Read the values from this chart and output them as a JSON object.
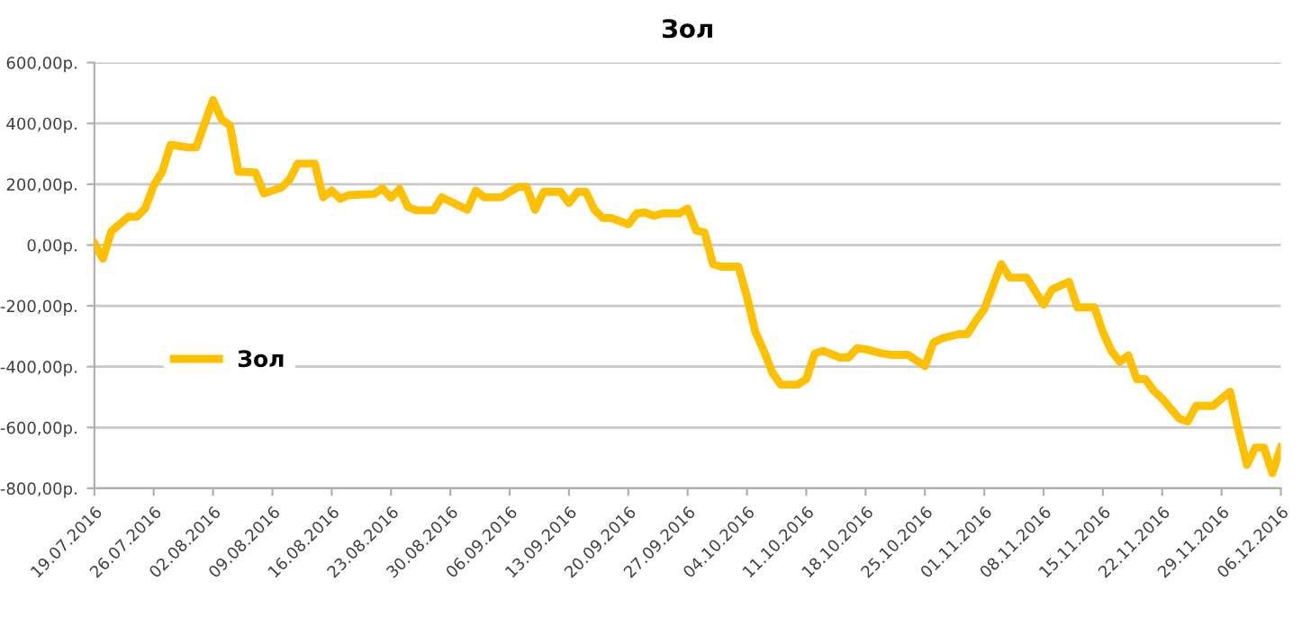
{
  "chart_data": {
    "type": "line",
    "title": "Зол",
    "x": [
      "2016-07-19",
      "2016-07-20",
      "2016-07-21",
      "2016-07-23",
      "2016-07-24",
      "2016-07-25",
      "2016-07-26",
      "2016-07-27",
      "2016-07-28",
      "2016-07-30",
      "2016-07-31",
      "2016-08-02",
      "2016-08-03",
      "2016-08-04",
      "2016-08-05",
      "2016-08-07",
      "2016-08-08",
      "2016-08-10",
      "2016-08-11",
      "2016-08-12",
      "2016-08-14",
      "2016-08-15",
      "2016-08-16",
      "2016-08-17",
      "2016-08-18",
      "2016-08-21",
      "2016-08-22",
      "2016-08-23",
      "2016-08-24",
      "2016-08-25",
      "2016-08-26",
      "2016-08-28",
      "2016-08-29",
      "2016-08-30",
      "2016-09-01",
      "2016-09-02",
      "2016-09-03",
      "2016-09-05",
      "2016-09-06",
      "2016-09-07",
      "2016-09-08",
      "2016-09-09",
      "2016-09-10",
      "2016-09-12",
      "2016-09-13",
      "2016-09-14",
      "2016-09-15",
      "2016-09-16",
      "2016-09-17",
      "2016-09-18",
      "2016-09-20",
      "2016-09-21",
      "2016-09-22",
      "2016-09-23",
      "2016-09-24",
      "2016-09-26",
      "2016-09-27",
      "2016-09-28",
      "2016-09-29",
      "2016-09-30",
      "2016-10-01",
      "2016-10-03",
      "2016-10-04",
      "2016-10-05",
      "2016-10-06",
      "2016-10-07",
      "2016-10-08",
      "2016-10-10",
      "2016-10-11",
      "2016-10-12",
      "2016-10-13",
      "2016-10-15",
      "2016-10-16",
      "2016-10-17",
      "2016-10-18",
      "2016-10-20",
      "2016-10-21",
      "2016-10-23",
      "2016-10-25",
      "2016-10-26",
      "2016-10-27",
      "2016-10-29",
      "2016-10-30",
      "2016-10-31",
      "2016-11-01",
      "2016-11-03",
      "2016-11-04",
      "2016-11-06",
      "2016-11-08",
      "2016-11-09",
      "2016-11-11",
      "2016-11-12",
      "2016-11-14",
      "2016-11-15",
      "2016-11-16",
      "2016-11-17",
      "2016-11-18",
      "2016-11-19",
      "2016-11-20",
      "2016-11-21",
      "2016-11-22",
      "2016-11-24",
      "2016-11-25",
      "2016-11-26",
      "2016-11-28",
      "2016-11-30",
      "2016-12-01",
      "2016-12-02",
      "2016-12-03",
      "2016-12-04",
      "2016-12-05",
      "2016-12-06"
    ],
    "series": [
      {
        "name": "Зол",
        "color": "#ffc000",
        "values": [
          5,
          -45,
          45,
          93,
          93,
          121,
          196,
          241,
          330,
          321,
          321,
          477,
          414,
          393,
          241,
          239,
          170,
          188,
          214,
          268,
          268,
          157,
          179,
          152,
          164,
          168,
          186,
          155,
          184,
          125,
          114,
          114,
          157,
          143,
          116,
          179,
          157,
          157,
          175,
          191,
          191,
          116,
          175,
          175,
          138,
          175,
          175,
          116,
          89,
          89,
          68,
          104,
          107,
          96,
          104,
          104,
          120,
          48,
          41,
          -63,
          -71,
          -71,
          -170,
          -286,
          -348,
          -420,
          -459,
          -459,
          -441,
          -357,
          -348,
          -370,
          -370,
          -339,
          -343,
          -357,
          -361,
          -361,
          -398,
          -321,
          -307,
          -293,
          -293,
          -250,
          -211,
          -63,
          -107,
          -107,
          -196,
          -146,
          -121,
          -205,
          -205,
          -286,
          -348,
          -384,
          -363,
          -441,
          -441,
          -479,
          -505,
          -571,
          -580,
          -529,
          -529,
          -482,
          -607,
          -723,
          -666,
          -666,
          -750,
          -666
        ]
      }
    ],
    "xlim": [
      "2016-07-19",
      "2016-12-06"
    ],
    "xticks": [
      {
        "value": "2016-07-19",
        "label": "19.07.2016"
      },
      {
        "value": "2016-07-26",
        "label": "26.07.2016"
      },
      {
        "value": "2016-08-02",
        "label": "02.08.2016"
      },
      {
        "value": "2016-08-09",
        "label": "09.08.2016"
      },
      {
        "value": "2016-08-16",
        "label": "16.08.2016"
      },
      {
        "value": "2016-08-23",
        "label": "23.08.2016"
      },
      {
        "value": "2016-08-30",
        "label": "30.08.2016"
      },
      {
        "value": "2016-09-06",
        "label": "06.09.2016"
      },
      {
        "value": "2016-09-13",
        "label": "13.09.2016"
      },
      {
        "value": "2016-09-20",
        "label": "20.09.2016"
      },
      {
        "value": "2016-09-27",
        "label": "27.09.2016"
      },
      {
        "value": "2016-10-04",
        "label": "04.10.2016"
      },
      {
        "value": "2016-10-11",
        "label": "11.10.2016"
      },
      {
        "value": "2016-10-18",
        "label": "18.10.2016"
      },
      {
        "value": "2016-10-25",
        "label": "25.10.2016"
      },
      {
        "value": "2016-11-01",
        "label": "01.11.2016"
      },
      {
        "value": "2016-11-08",
        "label": "08.11.2016"
      },
      {
        "value": "2016-11-15",
        "label": "15.11.2016"
      },
      {
        "value": "2016-11-22",
        "label": "22.11.2016"
      },
      {
        "value": "2016-11-29",
        "label": "29.11.2016"
      },
      {
        "value": "2016-12-06",
        "label": "06.12.2016"
      }
    ],
    "ylim": [
      -800,
      600
    ],
    "yticks": [
      {
        "value": 600,
        "label": "600,00р."
      },
      {
        "value": 400,
        "label": "400,00р."
      },
      {
        "value": 200,
        "label": "200,00р."
      },
      {
        "value": 0,
        "label": "0,00р."
      },
      {
        "value": -200,
        "label": "-200,00р."
      },
      {
        "value": -400,
        "label": "-400,00р."
      },
      {
        "value": -600,
        "label": "-600,00р."
      },
      {
        "value": -800,
        "label": "-800,00р."
      }
    ],
    "grid": "y",
    "legend": "left",
    "marker": "none",
    "line_style": "solid"
  }
}
